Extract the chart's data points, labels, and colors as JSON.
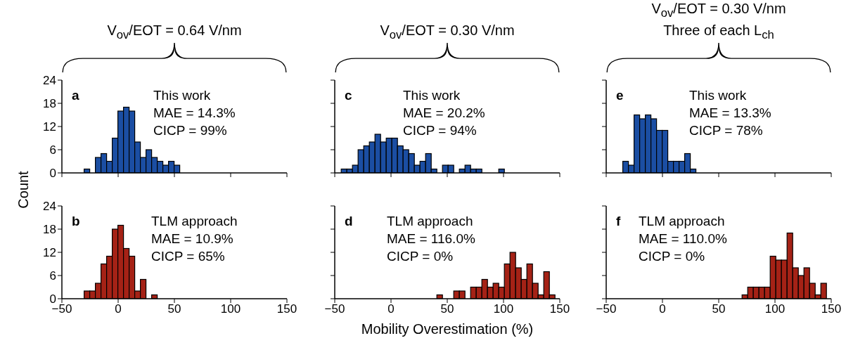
{
  "chart_data": [
    {
      "type": "histogram",
      "title": "V$_{ov}$/EOT = 0.64 V/nm",
      "ylabel": "Count",
      "bins": [
        -30,
        -25,
        -20,
        -15,
        -10,
        -5,
        0,
        5,
        10,
        15,
        20,
        25,
        30,
        35,
        40,
        45,
        50,
        55
      ],
      "values": [
        1,
        0,
        4,
        5,
        3,
        9,
        16,
        17,
        16,
        8,
        4,
        6,
        4,
        3,
        2,
        3,
        2
      ],
      "color": "#1b4ea3",
      "xlim": [
        -50,
        150
      ],
      "xticks": [
        -50,
        0,
        50,
        100,
        150
      ],
      "ylim": [
        0,
        24
      ],
      "yticks": [
        0,
        6,
        12,
        18,
        24
      ],
      "tick_labels": "y",
      "annotations": [
        "a",
        "This work",
        "MAE = 14.3%",
        "CICP = 99%"
      ]
    },
    {
      "type": "histogram",
      "title": "V$_{ov}$/EOT = 0.30 V/nm",
      "bins": [
        -44,
        -39,
        -34,
        -29,
        -24,
        -19,
        -14,
        -9,
        -4,
        1,
        6,
        11,
        16,
        21,
        26,
        31,
        36,
        41,
        46,
        51,
        56,
        61,
        66,
        71,
        76,
        81,
        86,
        91,
        96,
        101
      ],
      "values": [
        1,
        1,
        2,
        6,
        7,
        8,
        10,
        8,
        9,
        9,
        7,
        6,
        5,
        2,
        3,
        5,
        1,
        0,
        2,
        2,
        0,
        1,
        2,
        1,
        1,
        0,
        0,
        0,
        1
      ],
      "color": "#1b4ea3",
      "xlim": [
        -50,
        150
      ],
      "xticks": [
        -50,
        0,
        50,
        100,
        150
      ],
      "ylim": [
        0,
        24
      ],
      "yticks": [
        0,
        6,
        12,
        18,
        24
      ],
      "tick_labels": false,
      "annotations": [
        "c",
        "This work",
        "MAE = 20.2%",
        "CICP = 94%"
      ]
    },
    {
      "type": "histogram",
      "title": "V$_{ov}$/EOT = 0.30 V/nm\nThree of each L$_{ch}$",
      "bins": [
        -35,
        -30,
        -25,
        -20,
        -15,
        -10,
        -5,
        0,
        5,
        10,
        15,
        20,
        25,
        30
      ],
      "values": [
        3,
        2,
        15,
        14,
        15,
        14,
        11,
        11,
        3,
        3,
        3,
        5,
        1
      ],
      "color": "#1b4ea3",
      "xlim": [
        -50,
        150
      ],
      "xticks": [
        -50,
        0,
        50,
        100,
        150
      ],
      "ylim": [
        0,
        24
      ],
      "yticks": [
        0,
        6,
        12,
        18,
        24
      ],
      "tick_labels": false,
      "annotations": [
        "e",
        "This work",
        "MAE = 13.3%",
        "CICP = 78%"
      ]
    },
    {
      "type": "histogram",
      "bins": [
        -30,
        -25,
        -20,
        -15,
        -10,
        -5,
        0,
        5,
        10,
        15,
        20,
        25,
        30,
        35
      ],
      "values": [
        2,
        2,
        4,
        9,
        11,
        18,
        19,
        13,
        11,
        2,
        5,
        0,
        1
      ],
      "color": "#a52216",
      "xlim": [
        -50,
        150
      ],
      "xticks": [
        -50,
        0,
        50,
        100,
        150
      ],
      "ylim": [
        0,
        24
      ],
      "yticks": [
        0,
        6,
        12,
        18,
        24
      ],
      "annotations": [
        "b",
        "TLM approach",
        "MAE = 10.9%",
        "CICP = 65%"
      ]
    },
    {
      "type": "histogram",
      "xlabel": "Mobility Overestimation (%)",
      "bins": [
        41,
        46,
        51,
        56,
        61,
        66,
        71,
        76,
        81,
        86,
        91,
        96,
        101,
        106,
        111,
        116,
        121,
        126,
        131,
        136,
        141,
        146
      ],
      "values": [
        1,
        0,
        0,
        2,
        2,
        0,
        3,
        3,
        5,
        3,
        4,
        3,
        9,
        12,
        8,
        5,
        9,
        4,
        1,
        7,
        1
      ],
      "color": "#a52216",
      "xlim": [
        -50,
        150
      ],
      "xticks": [
        -50,
        0,
        50,
        100,
        150
      ],
      "ylim": [
        0,
        24
      ],
      "yticks": [
        0,
        6,
        12,
        18,
        24
      ],
      "tick_labels": "x",
      "annotations": [
        "d",
        "TLM approach",
        "MAE = 116.0%",
        "CICP = 0%"
      ]
    },
    {
      "type": "histogram",
      "bins": [
        71,
        76,
        81,
        86,
        91,
        96,
        101,
        106,
        111,
        116,
        121,
        126,
        131,
        136,
        141,
        146
      ],
      "values": [
        1,
        3,
        3,
        3,
        3,
        11,
        10,
        10,
        17,
        8,
        6,
        8,
        4,
        1,
        4
      ],
      "color": "#a52216",
      "xlim": [
        -50,
        150
      ],
      "xticks": [
        -50,
        0,
        50,
        100,
        150
      ],
      "ylim": [
        0,
        24
      ],
      "yticks": [
        0,
        6,
        12,
        18,
        24
      ],
      "tick_labels": "x",
      "annotations": [
        "f",
        "TLM approach",
        "MAE = 110.0%",
        "CICP = 0%"
      ]
    }
  ]
}
